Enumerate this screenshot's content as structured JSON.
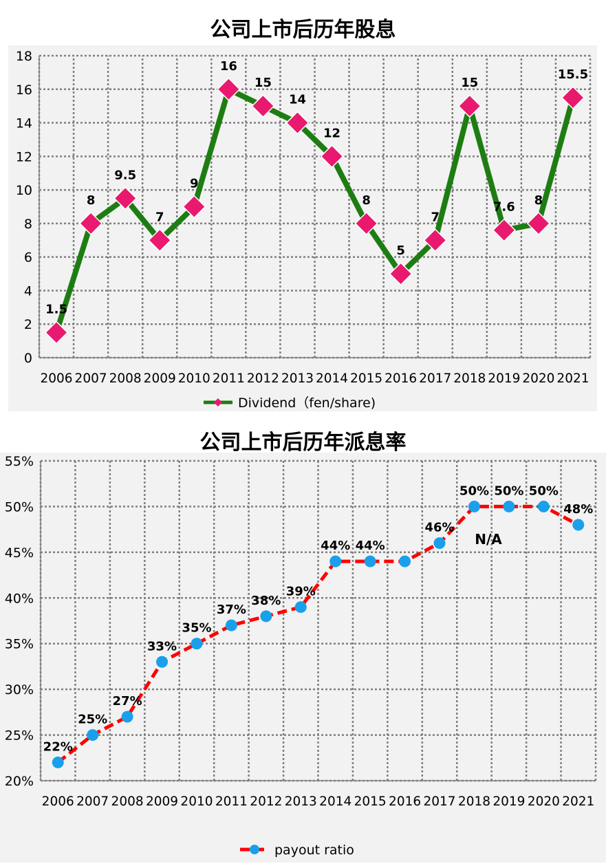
{
  "chart_data": [
    {
      "type": "line",
      "title": "公司上市后历年股息",
      "categories": [
        "2006",
        "2007",
        "2008",
        "2009",
        "2010",
        "2011",
        "2012",
        "2013",
        "2014",
        "2015",
        "2016",
        "2017",
        "2018",
        "2019",
        "2020",
        "2021"
      ],
      "series": [
        {
          "name": "Dividend（fen/share)",
          "values": [
            1.5,
            8,
            9.5,
            7,
            9,
            16,
            15,
            14,
            12,
            8,
            5,
            7,
            15,
            7.6,
            8,
            15.5
          ],
          "data_labels": [
            "1.5",
            "8",
            "9.5",
            "7",
            "9",
            "16",
            "15",
            "14",
            "12",
            "8",
            "5",
            "7",
            "15",
            "7.6",
            "8",
            "15.5"
          ]
        }
      ],
      "ylim": [
        0,
        18
      ],
      "yticks": [
        0,
        2,
        4,
        6,
        8,
        10,
        12,
        14,
        16,
        18
      ],
      "ytick_labels": [
        "0",
        "2",
        "4",
        "6",
        "8",
        "10",
        "12",
        "14",
        "16",
        "18"
      ],
      "grid": true,
      "legend": "bottom",
      "colors": {
        "line": "#1e7d12",
        "marker": "#e8196f",
        "marker_edge": "#ffffff",
        "plot_bg": "#f2f2f2",
        "grid": "#7f7f7f"
      }
    },
    {
      "type": "line",
      "title": "公司上市后历年派息率",
      "categories": [
        "2006",
        "2007",
        "2008",
        "2009",
        "2010",
        "2011",
        "2012",
        "2013",
        "2014",
        "2015",
        "2016",
        "2017",
        "2018",
        "2019",
        "2020",
        "2021"
      ],
      "series": [
        {
          "name": "payout ratio",
          "values": [
            22,
            25,
            27,
            33,
            35,
            37,
            38,
            39,
            44,
            44,
            44,
            46,
            50,
            50,
            50,
            48
          ],
          "data_labels": [
            "22%",
            "25%",
            "27%",
            "33%",
            "35%",
            "37%",
            "38%",
            "39%",
            "44%",
            "44%",
            "",
            "46%",
            "50%",
            "50%",
            "50%",
            "48%"
          ]
        }
      ],
      "annotations": [
        {
          "text": "N/A"
        }
      ],
      "ylim": [
        20,
        55
      ],
      "yticks": [
        20,
        25,
        30,
        35,
        40,
        45,
        50,
        55
      ],
      "ytick_labels": [
        "20%",
        "25%",
        "30%",
        "35%",
        "40%",
        "45%",
        "50%",
        "55%"
      ],
      "grid": true,
      "legend": "bottom",
      "colors": {
        "line": "#ff0000",
        "marker": "#1aa0ea",
        "plot_bg": "#f2f2f2",
        "grid": "#7f7f7f"
      }
    }
  ]
}
